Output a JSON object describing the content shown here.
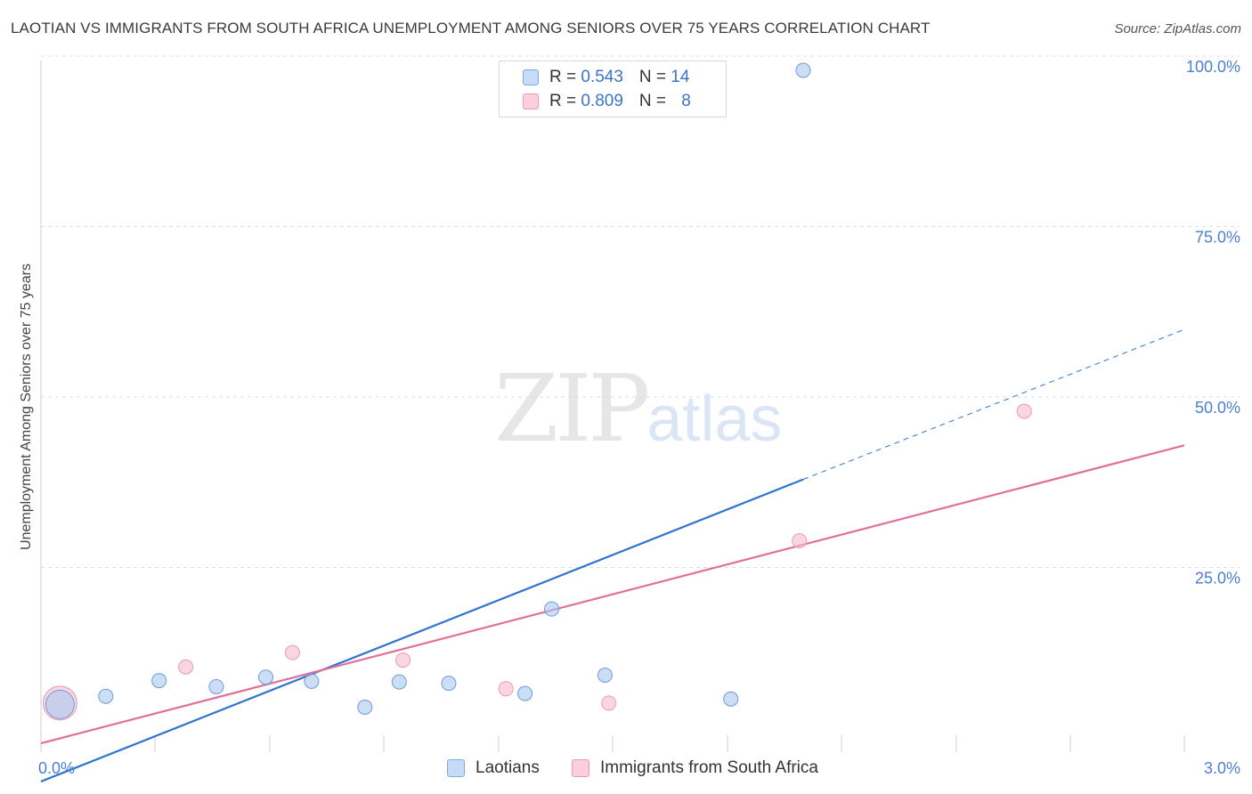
{
  "title": "LAOTIAN VS IMMIGRANTS FROM SOUTH AFRICA UNEMPLOYMENT AMONG SENIORS OVER 75 YEARS CORRELATION CHART",
  "source": "Source: ZipAtlas.com",
  "watermark": {
    "zip": "ZIP",
    "atlas": "atlas"
  },
  "legend": {
    "laotians": {
      "r_label": "R = ",
      "r_value": "0.543",
      "n_label": "N = ",
      "n_value": "14"
    },
    "sa": {
      "r_label": "R = ",
      "r_value": "0.809",
      "n_label": "N = ",
      "n_value": "8"
    }
  },
  "bottom_legend": {
    "laotians": "Laotians",
    "sa": "Immigrants from South Africa"
  },
  "chart_data": {
    "type": "scatter",
    "title": "LAOTIAN VS IMMIGRANTS FROM SOUTH AFRICA UNEMPLOYMENT AMONG SENIORS OVER 75 YEARS CORRELATION CHART",
    "xlabel": "",
    "ylabel": "Unemployment Among Seniors over 75 years",
    "xlim": [
      0,
      3.0
    ],
    "ylim": [
      0,
      100
    ],
    "x_tick_labels": [
      "0.0%",
      "3.0%"
    ],
    "y_tick_values": [
      25,
      50,
      75,
      100
    ],
    "y_tick_labels": [
      "25.0%",
      "50.0%",
      "75.0%",
      "100.0%"
    ],
    "grid": true,
    "colors": {
      "laotians": "#a9c8f0",
      "laotians_line": "#2f74d0",
      "sa": "#f6bccb",
      "sa_line": "#e0709a"
    },
    "series": [
      {
        "name": "Laotians",
        "points": [
          {
            "x": 0.05,
            "y": 7.0,
            "size": "large"
          },
          {
            "x": 0.17,
            "y": 8.2
          },
          {
            "x": 0.31,
            "y": 10.5
          },
          {
            "x": 0.46,
            "y": 9.6
          },
          {
            "x": 0.59,
            "y": 11.0
          },
          {
            "x": 0.71,
            "y": 10.4
          },
          {
            "x": 0.85,
            "y": 6.6
          },
          {
            "x": 0.94,
            "y": 10.3
          },
          {
            "x": 1.07,
            "y": 10.1
          },
          {
            "x": 1.27,
            "y": 8.6
          },
          {
            "x": 1.34,
            "y": 21.0
          },
          {
            "x": 1.48,
            "y": 11.3
          },
          {
            "x": 1.81,
            "y": 7.8
          },
          {
            "x": 2.0,
            "y": 100.0
          }
        ],
        "trend": {
          "x0": 0.0,
          "y0": -4.3,
          "x1": 2.0,
          "y1": 40.0,
          "dashed_to_x": 3.0,
          "dashed_to_y": 62.0
        }
      },
      {
        "name": "Immigrants from South Africa",
        "points": [
          {
            "x": 0.05,
            "y": 7.2,
            "size": "large"
          },
          {
            "x": 0.38,
            "y": 12.5
          },
          {
            "x": 0.66,
            "y": 14.6
          },
          {
            "x": 0.95,
            "y": 13.5
          },
          {
            "x": 1.22,
            "y": 9.3
          },
          {
            "x": 1.49,
            "y": 7.2
          },
          {
            "x": 1.99,
            "y": 31.0
          },
          {
            "x": 2.58,
            "y": 50.0
          }
        ],
        "trend": {
          "x0": 0.0,
          "y0": 1.3,
          "x1": 3.0,
          "y1": 45.0
        }
      }
    ]
  }
}
